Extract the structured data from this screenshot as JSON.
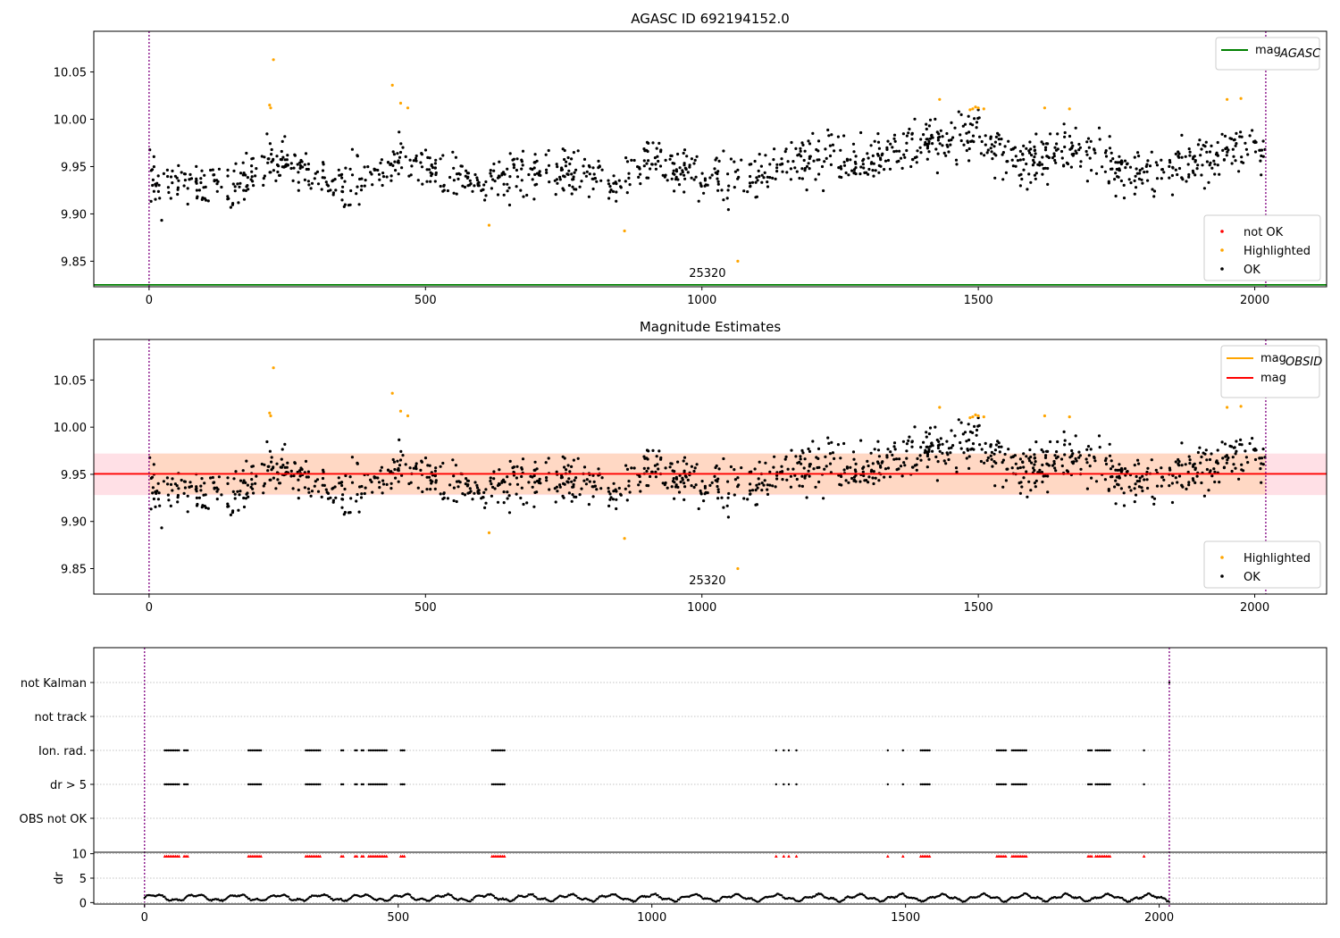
{
  "chart_data": [
    {
      "type": "scatter",
      "title": "AGASC ID 692194152.0",
      "xlim": [
        -100,
        2130
      ],
      "ylim": [
        9.823,
        10.093
      ],
      "xticks": [
        0,
        500,
        1000,
        1500,
        2000
      ],
      "yticks": [
        9.85,
        9.9,
        9.95,
        10.0,
        10.05
      ],
      "xtick_labels": [
        "0",
        "500",
        "1000",
        "1500",
        "2000"
      ],
      "ytick_labels": [
        "9.85",
        "9.90",
        "9.95",
        "10.00",
        "10.05"
      ],
      "vlines": [
        0,
        2020
      ],
      "obsid_label": {
        "x": 1010,
        "y": 9.838,
        "text": "25320"
      },
      "mag_agasc": {
        "value": 9.825,
        "x_range": [
          -100,
          2130
        ],
        "color": "#008000"
      },
      "legend_lines": [
        {
          "label": "mag",
          "sub": "AGASC",
          "color": "#008000"
        }
      ],
      "legend_points": [
        {
          "label": "not OK",
          "color": "#ff0000"
        },
        {
          "label": "Highlighted",
          "color": "#ffa500"
        },
        {
          "label": "OK",
          "color": "#000000"
        }
      ],
      "highlighted": [
        [
          218,
          10.015
        ],
        [
          220,
          10.012
        ],
        [
          225,
          10.063
        ],
        [
          440,
          10.036
        ],
        [
          455,
          10.017
        ],
        [
          468,
          10.012
        ],
        [
          615,
          9.888
        ],
        [
          860,
          9.882
        ],
        [
          1065,
          9.85
        ],
        [
          1430,
          10.021
        ],
        [
          1485,
          10.01
        ],
        [
          1490,
          10.011
        ],
        [
          1495,
          10.013
        ],
        [
          1500,
          10.012
        ],
        [
          1510,
          10.011
        ],
        [
          1620,
          10.012
        ],
        [
          1665,
          10.011
        ],
        [
          1950,
          10.021
        ],
        [
          1975,
          10.022
        ]
      ],
      "trend": [
        [
          0,
          9.935
        ],
        [
          50,
          9.935
        ],
        [
          100,
          9.928
        ],
        [
          150,
          9.93
        ],
        [
          200,
          9.945
        ],
        [
          250,
          9.955
        ],
        [
          300,
          9.94
        ],
        [
          350,
          9.925
        ],
        [
          400,
          9.94
        ],
        [
          450,
          9.955
        ],
        [
          500,
          9.948
        ],
        [
          550,
          9.938
        ],
        [
          600,
          9.93
        ],
        [
          650,
          9.938
        ],
        [
          700,
          9.945
        ],
        [
          750,
          9.94
        ],
        [
          800,
          9.94
        ],
        [
          850,
          9.925
        ],
        [
          900,
          9.958
        ],
        [
          950,
          9.948
        ],
        [
          1000,
          9.942
        ],
        [
          1050,
          9.935
        ],
        [
          1100,
          9.94
        ],
        [
          1150,
          9.95
        ],
        [
          1200,
          9.962
        ],
        [
          1250,
          9.955
        ],
        [
          1300,
          9.958
        ],
        [
          1350,
          9.968
        ],
        [
          1400,
          9.975
        ],
        [
          1450,
          9.98
        ],
        [
          1500,
          9.985
        ],
        [
          1550,
          9.955
        ],
        [
          1600,
          9.955
        ],
        [
          1650,
          9.97
        ],
        [
          1700,
          9.962
        ],
        [
          1750,
          9.95
        ],
        [
          1800,
          9.945
        ],
        [
          1850,
          9.945
        ],
        [
          1900,
          9.955
        ],
        [
          1950,
          9.97
        ],
        [
          2000,
          9.975
        ],
        [
          2020,
          9.96
        ]
      ]
    },
    {
      "type": "scatter",
      "title": "Magnitude Estimates",
      "xlim": [
        -100,
        2130
      ],
      "ylim": [
        9.823,
        10.093
      ],
      "xticks": [
        0,
        500,
        1000,
        1500,
        2000
      ],
      "yticks": [
        9.85,
        9.9,
        9.95,
        10.0,
        10.05
      ],
      "xtick_labels": [
        "0",
        "500",
        "1000",
        "1500",
        "2000"
      ],
      "ytick_labels": [
        "9.85",
        "9.90",
        "9.95",
        "10.00",
        "10.05"
      ],
      "vlines": [
        0,
        2020
      ],
      "obsid_label": {
        "x": 1010,
        "y": 9.838,
        "text": "25320"
      },
      "mag": {
        "value": 9.9505,
        "x_range": [
          -100,
          2130
        ],
        "color": "#ff0000",
        "band": [
          9.928,
          9.972
        ],
        "band_color": "#ffe0e6"
      },
      "mag_obsid": {
        "x_range": [
          0,
          2020
        ],
        "band": [
          9.929,
          9.972
        ],
        "band_color": "#ffd8c4",
        "color": "#ffa500"
      },
      "legend_lines": [
        {
          "label": "mag",
          "sub": "OBSID",
          "color": "#ffa500"
        },
        {
          "label": "mag",
          "sub": "",
          "color": "#ff0000"
        }
      ],
      "legend_points": [
        {
          "label": "Highlighted",
          "color": "#ffa500"
        },
        {
          "label": "OK",
          "color": "#000000"
        }
      ]
    },
    {
      "type": "scatter",
      "title": "",
      "xlim": [
        -100,
        2330
      ],
      "xticks": [
        0,
        500,
        1000,
        1500,
        2000
      ],
      "xtick_labels": [
        "0",
        "500",
        "1000",
        "1500",
        "2000"
      ],
      "vlines": [
        0,
        2020
      ],
      "flag_rows": [
        "not Kalman",
        "not track",
        "Ion. rad.",
        "dr > 5",
        "OBS not OK"
      ],
      "flag_intervals": [
        [
          40,
          68
        ],
        [
          78,
          88
        ],
        [
          205,
          232
        ],
        [
          318,
          348
        ],
        [
          388,
          392
        ],
        [
          415,
          420
        ],
        [
          428,
          432
        ],
        [
          442,
          480
        ],
        [
          505,
          515
        ],
        [
          685,
          712
        ],
        [
          1245,
          1248
        ],
        [
          1260,
          1263
        ],
        [
          1270,
          1273
        ],
        [
          1285,
          1288
        ],
        [
          1465,
          1468
        ],
        [
          1495,
          1498
        ],
        [
          1530,
          1550
        ],
        [
          1680,
          1700
        ],
        [
          1710,
          1740
        ],
        [
          1860,
          1870
        ],
        [
          1875,
          1905
        ],
        [
          1970,
          1973
        ]
      ],
      "not_kalman_points": [
        2020
      ],
      "dr_panel": {
        "ylabel": "dr",
        "ylim": [
          -0.3,
          10.3
        ],
        "yticks": [
          0,
          5,
          10
        ],
        "ytick_labels": [
          "0",
          "5",
          "10"
        ],
        "flag_value": 9.5
      }
    }
  ]
}
